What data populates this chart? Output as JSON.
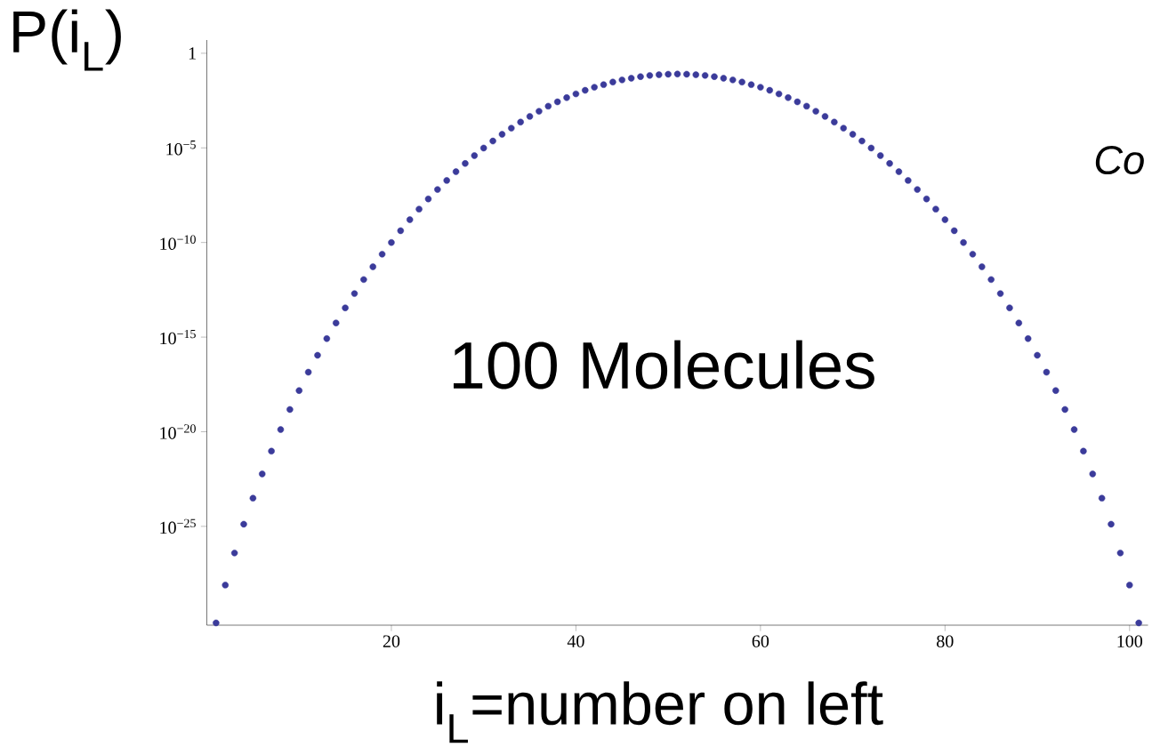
{
  "chart_data": {
    "type": "scatter",
    "ylabel": "P(i$_{L}$)",
    "xlabel": "i$_{L}$=number on left",
    "annotations": [
      "100 Molecules",
      "Co"
    ],
    "x": [
      1,
      2,
      3,
      4,
      5,
      6,
      7,
      8,
      9,
      10,
      11,
      12,
      13,
      14,
      15,
      16,
      17,
      18,
      19,
      20,
      21,
      22,
      23,
      24,
      25,
      26,
      27,
      28,
      29,
      30,
      31,
      32,
      33,
      34,
      35,
      36,
      37,
      38,
      39,
      40,
      41,
      42,
      43,
      44,
      45,
      46,
      47,
      48,
      49,
      50,
      51,
      52,
      53,
      54,
      55,
      56,
      57,
      58,
      59,
      60,
      61,
      62,
      63,
      64,
      65,
      66,
      67,
      68,
      69,
      70,
      71,
      72,
      73,
      74,
      75,
      76,
      77,
      78,
      79,
      80,
      81,
      82,
      83,
      84,
      85,
      86,
      87,
      88,
      89,
      90,
      91,
      92,
      93,
      94,
      95,
      96,
      97,
      98,
      99,
      100,
      101
    ],
    "series": [
      {
        "color": "#3b3b9a",
        "values": [
          7.9e-31,
          7.9e-29,
          3.9e-27,
          1.3e-25,
          3.1e-24,
          5.9e-23,
          9.4e-22,
          1.3e-20,
          1.5e-19,
          1.5e-18,
          1.4e-17,
          1.1e-16,
          8.3e-16,
          5.6e-15,
          3.5e-14,
          2e-13,
          1.1e-12,
          5.2e-12,
          2.4e-11,
          1e-10,
          4.2e-10,
          1.6e-09,
          5.8e-09,
          2e-08,
          6.3e-08,
          1.9e-07,
          5.5e-07,
          1.5e-06,
          3.9e-06,
          9.8e-06,
          2.3e-05,
          5.2e-05,
          0.00011,
          0.00023,
          0.00046,
          0.00086,
          0.0016,
          0.0027,
          0.0045,
          0.0071,
          0.011,
          0.016,
          0.022,
          0.03,
          0.039,
          0.048,
          0.058,
          0.067,
          0.073,
          0.078,
          0.08,
          0.078,
          0.073,
          0.067,
          0.058,
          0.048,
          0.039,
          0.03,
          0.022,
          0.016,
          0.011,
          0.0071,
          0.0045,
          0.0027,
          0.0016,
          0.00086,
          0.00046,
          0.00023,
          0.00011,
          5.2e-05,
          2.3e-05,
          9.8e-06,
          3.9e-06,
          1.5e-06,
          5.5e-07,
          1.9e-07,
          6.3e-08,
          2e-08,
          5.8e-09,
          1.6e-09,
          4.2e-10,
          1e-10,
          2.4e-11,
          5.2e-12,
          1.1e-12,
          2e-13,
          3.5e-14,
          5.6e-15,
          8.3e-16,
          1.1e-16,
          1.4e-17,
          1.5e-18,
          1.5e-19,
          1.3e-20,
          9.4e-22,
          5.9e-23,
          3.1e-24,
          1.3e-25,
          3.9e-27,
          7.9e-29,
          7.9e-31
        ]
      }
    ],
    "log": "y",
    "xlim": [
      0,
      102
    ],
    "ylim": [
      6e-31,
      5
    ],
    "xticks": [
      20,
      40,
      60,
      80,
      100
    ],
    "yticks": [
      {
        "value": 1,
        "label": "1"
      },
      {
        "value": 1e-05,
        "label": "10$^{−5}$"
      },
      {
        "value": 1e-10,
        "label": "10$^{−10}$"
      },
      {
        "value": 1e-15,
        "label": "10$^{−15}$"
      },
      {
        "value": 1e-20,
        "label": "10$^{−20}$"
      },
      {
        "value": 1e-25,
        "label": "10$^{−25}$"
      }
    ]
  }
}
